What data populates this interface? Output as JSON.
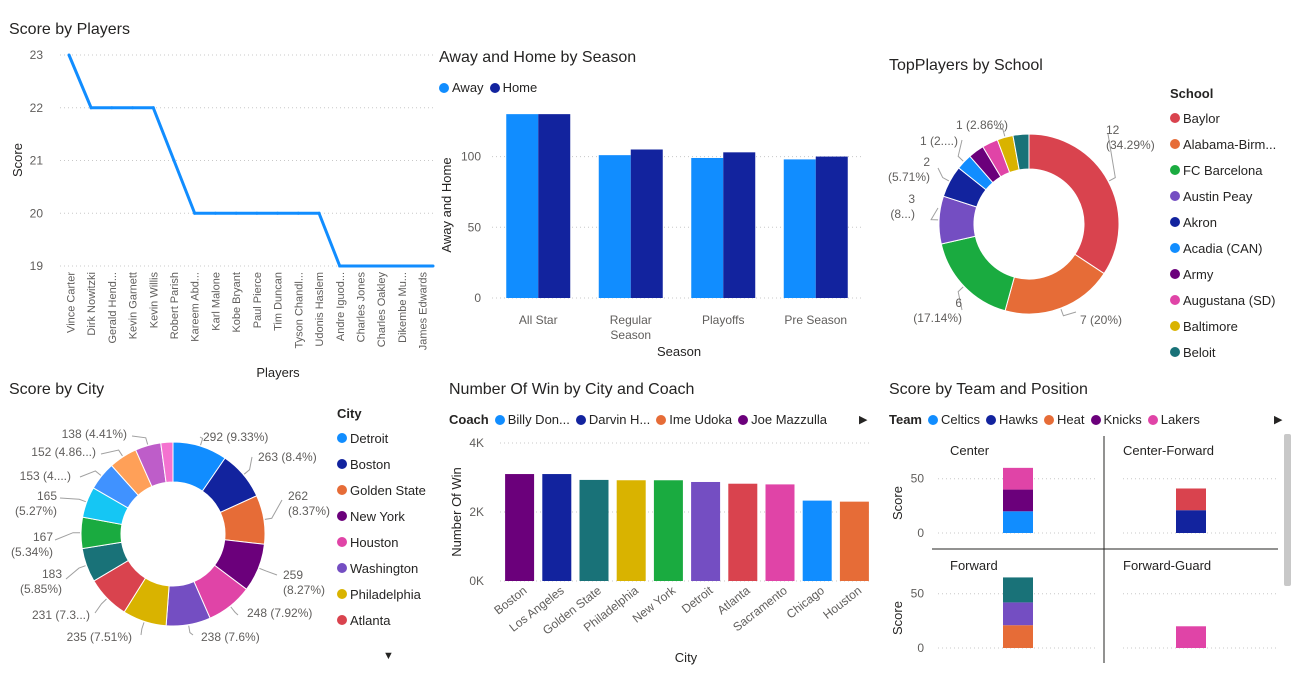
{
  "charts": [
    {
      "id": "score_players",
      "title": "Score by Players",
      "chart_data": {
        "type": "line",
        "categories": [
          "Vince Carter",
          "Dirk Nowitzki",
          "Gerald Hend...",
          "Kevin Garnett",
          "Kevin Willis",
          "Robert Parish",
          "Kareem Abd...",
          "Karl Malone",
          "Kobe Bryant",
          "Paul Pierce",
          "Tim Duncan",
          "Tyson Chandl...",
          "Udonis Haslem",
          "Andre Iguod...",
          "Charles Jones",
          "Charles Oakley",
          "Dikembe Mu...",
          "James Edwards"
        ],
        "values": [
          23,
          22,
          22,
          22,
          22,
          21,
          20,
          20,
          20,
          20,
          20,
          20,
          20,
          19,
          19,
          19,
          19,
          19
        ],
        "xlabel": "Players",
        "ylabel": "Score",
        "ylim": [
          19,
          23
        ],
        "yticks": [
          "19",
          "20",
          "21",
          "22",
          "23"
        ],
        "color": "#118DFF"
      }
    },
    {
      "id": "away_home",
      "title": "Away and Home by Season",
      "chart_data": {
        "type": "bar",
        "categories": [
          "All Star",
          "Regular Season",
          "Playoffs",
          "Pre Season"
        ],
        "series": [
          {
            "name": "Away",
            "color": "#118DFF",
            "values": [
              130,
              101,
              99,
              98
            ]
          },
          {
            "name": "Home",
            "color": "#12239E",
            "values": [
              130,
              105,
              103,
              100
            ]
          }
        ],
        "xlabel": "Season",
        "ylabel": "Away and Home",
        "ylim": [
          0,
          140
        ],
        "yticks": [
          "0",
          "50",
          "100"
        ]
      }
    },
    {
      "id": "top_players",
      "title": "TopPlayers by School",
      "legend_title": "School",
      "chart_data": {
        "type": "pie",
        "donut": true,
        "slices": [
          {
            "label": "Baylor",
            "value": 12,
            "color": "#D9434E",
            "text1": "12",
            "text2": "(34.29%)"
          },
          {
            "label": "Alabama-Birm...",
            "value": 7,
            "color": "#E66C37",
            "text1": "7 (20%)",
            "text2": ""
          },
          {
            "label": "FC Barcelona",
            "value": 6,
            "color": "#1AAB40",
            "text1": "6",
            "text2": "(17.14%)"
          },
          {
            "label": "Austin Peay",
            "value": 3,
            "color": "#744EC2",
            "text1": "3",
            "text2": "(8...)"
          },
          {
            "label": "Akron",
            "value": 2,
            "color": "#12239E",
            "text1": "2",
            "text2": "(5.71%)"
          },
          {
            "label": "Acadia (CAN)",
            "value": 1,
            "color": "#118DFF",
            "text1": "1 (2....)",
            "text2": ""
          },
          {
            "label": "Army",
            "value": 1,
            "color": "#6B007B",
            "text1": "",
            "text2": ""
          },
          {
            "label": "Augustana (SD)",
            "value": 1,
            "color": "#E044A7",
            "text1": "",
            "text2": ""
          },
          {
            "label": "Baltimore",
            "value": 1,
            "color": "#D9B300",
            "text1": "1 (2.86%)",
            "text2": ""
          },
          {
            "label": "Beloit",
            "value": 1,
            "color": "#197278",
            "text1": "",
            "text2": ""
          }
        ]
      }
    },
    {
      "id": "score_city",
      "title": "Score by City",
      "legend_title": "City",
      "chart_data": {
        "type": "pie",
        "donut": true,
        "slices": [
          {
            "label": "Detroit",
            "value": 292,
            "color": "#118DFF",
            "text1": "292 (9.33%)",
            "text2": ""
          },
          {
            "label": "Boston",
            "value": 263,
            "color": "#12239E",
            "text1": "263 (8.4%)",
            "text2": ""
          },
          {
            "label": "Golden State",
            "value": 262,
            "color": "#E66C37",
            "text1": "262",
            "text2": "(8.37%)"
          },
          {
            "label": "New York",
            "value": 259,
            "color": "#6B007B",
            "text1": "259",
            "text2": "(8.27%)"
          },
          {
            "label": "Houston",
            "value": 248,
            "color": "#E044A7",
            "text1": "248 (7.92%)",
            "text2": ""
          },
          {
            "label": "Washington",
            "value": 238,
            "color": "#744EC2",
            "text1": "238 (7.6%)",
            "text2": ""
          },
          {
            "label": "Philadelphia",
            "value": 235,
            "color": "#D9B300",
            "text1": "235 (7.51%)",
            "text2": ""
          },
          {
            "label": "Atlanta",
            "value": 231,
            "color": "#D9434E",
            "text1": "231 (7.3...)",
            "text2": ""
          },
          {
            "label": "",
            "value": 183,
            "color": "#197278",
            "text1": "183",
            "text2": "(5.85%)"
          },
          {
            "label": "",
            "value": 167,
            "color": "#1AAB40",
            "text1": "167",
            "text2": "(5.34%)"
          },
          {
            "label": "",
            "value": 165,
            "color": "#15C6F4",
            "text1": "165",
            "text2": "(5.27%)"
          },
          {
            "label": "",
            "value": 153,
            "color": "#4092FF",
            "text1": "153 (4....)",
            "text2": ""
          },
          {
            "label": "",
            "value": 152,
            "color": "#FFA058",
            "text1": "152 (4.86...)",
            "text2": ""
          },
          {
            "label": "",
            "value": 138,
            "color": "#BE5DC9",
            "text1": "138 (4.41%)",
            "text2": ""
          },
          {
            "label": "",
            "value": 65,
            "color": "#F472D0",
            "text1": "",
            "text2": ""
          }
        ]
      }
    },
    {
      "id": "wins_city",
      "title": "Number Of Win by City and Coach",
      "legend_title": "Coach",
      "legend": [
        {
          "name": "Billy Don...",
          "color": "#118DFF"
        },
        {
          "name": "Darvin H...",
          "color": "#12239E"
        },
        {
          "name": "Ime Udoka",
          "color": "#E66C37"
        },
        {
          "name": "Joe Mazzulla",
          "color": "#6B007B"
        }
      ],
      "chart_data": {
        "type": "bar",
        "categories": [
          "Boston",
          "Los Angeles",
          "Golden State",
          "Philadelphia",
          "New York",
          "Detroit",
          "Atlanta",
          "Sacramento",
          "Chicago",
          "Houston"
        ],
        "values": [
          3100,
          3100,
          2930,
          2920,
          2920,
          2870,
          2820,
          2800,
          2330,
          2300
        ],
        "colors": [
          "#6B007B",
          "#12239E",
          "#197278",
          "#D9B300",
          "#1AAB40",
          "#744EC2",
          "#D9434E",
          "#E044A7",
          "#118DFF",
          "#E66C37"
        ],
        "xlabel": "City",
        "ylabel": "Number Of Win",
        "ylim": [
          0,
          4000
        ],
        "yticks": [
          "0K",
          "2K",
          "4K"
        ]
      }
    },
    {
      "id": "team_position",
      "title": "Score by Team and Position",
      "legend_title": "Team",
      "legend": [
        {
          "name": "Celtics",
          "color": "#118DFF"
        },
        {
          "name": "Hawks",
          "color": "#12239E"
        },
        {
          "name": "Heat",
          "color": "#E66C37"
        },
        {
          "name": "Knicks",
          "color": "#6B007B"
        },
        {
          "name": "Lakers",
          "color": "#E044A7"
        }
      ],
      "chart_data": {
        "type": "bar",
        "ylabel": "Score",
        "ylim": [
          0,
          70
        ],
        "yticks": [
          "0",
          "50"
        ],
        "facets": [
          {
            "label": "Center",
            "segments": [
              {
                "team": "Celtics",
                "value": 20,
                "color": "#118DFF"
              },
              {
                "team": "Knicks",
                "value": 20,
                "color": "#6B007B"
              },
              {
                "team": "Lakers",
                "value": 20,
                "color": "#E044A7"
              }
            ]
          },
          {
            "label": "Center-Forward",
            "segments": [
              {
                "team": "Hawks",
                "value": 21,
                "color": "#12239E"
              },
              {
                "team": "",
                "value": 20,
                "color": "#D9434E"
              }
            ]
          },
          {
            "label": "Forward",
            "segments": [
              {
                "team": "Heat",
                "value": 21,
                "color": "#E66C37"
              },
              {
                "team": "",
                "value": 21,
                "color": "#744EC2"
              },
              {
                "team": "",
                "value": 23,
                "color": "#197278"
              }
            ]
          },
          {
            "label": "Forward-Guard",
            "segments": [
              {
                "team": "Lakers",
                "value": 20,
                "color": "#E044A7"
              }
            ]
          }
        ]
      }
    }
  ]
}
